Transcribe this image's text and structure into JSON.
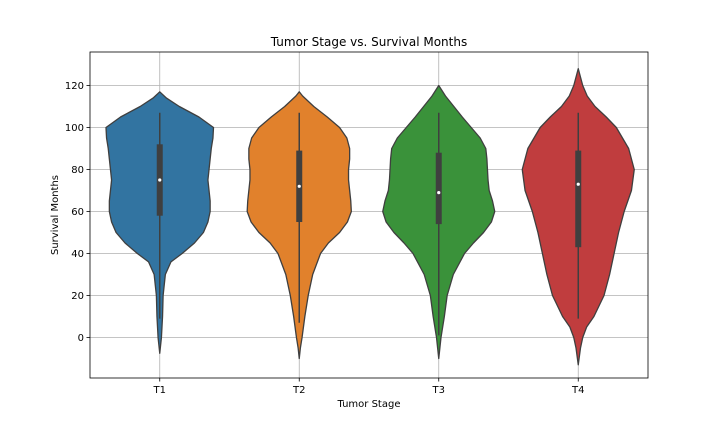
{
  "chart_data": {
    "type": "violin",
    "title": "Tumor Stage vs. Survival Months",
    "xlabel": "Tumor Stage",
    "ylabel": "Survival Months",
    "ylim": [
      -20,
      135
    ],
    "yticks": [
      0,
      20,
      40,
      60,
      80,
      100,
      120
    ],
    "grid": true,
    "categories": [
      "T1",
      "T2",
      "T3",
      "T4"
    ],
    "colors": [
      "#3274a1",
      "#e1812c",
      "#3a923a",
      "#c03d3e"
    ],
    "violins": [
      {
        "category": "T1",
        "median": 75,
        "q1": 58,
        "q3": 92,
        "whisker_low": 9,
        "whisker_high": 107,
        "profile": [
          [
            -7.5,
            0
          ],
          [
            0,
            0.03
          ],
          [
            10,
            0.05
          ],
          [
            20,
            0.06
          ],
          [
            30,
            0.1
          ],
          [
            36,
            0.2
          ],
          [
            40,
            0.4
          ],
          [
            45,
            0.62
          ],
          [
            50,
            0.78
          ],
          [
            55,
            0.86
          ],
          [
            60,
            0.9
          ],
          [
            65,
            0.9
          ],
          [
            70,
            0.88
          ],
          [
            75,
            0.86
          ],
          [
            80,
            0.88
          ],
          [
            85,
            0.9
          ],
          [
            90,
            0.92
          ],
          [
            95,
            0.95
          ],
          [
            100,
            0.96
          ],
          [
            105,
            0.7
          ],
          [
            110,
            0.35
          ],
          [
            114,
            0.12
          ],
          [
            117,
            0
          ]
        ]
      },
      {
        "category": "T2",
        "median": 72,
        "q1": 55,
        "q3": 89,
        "whisker_low": 7,
        "whisker_high": 107,
        "profile": [
          [
            -10,
            0
          ],
          [
            -5,
            0.02
          ],
          [
            0,
            0.05
          ],
          [
            10,
            0.1
          ],
          [
            20,
            0.16
          ],
          [
            30,
            0.24
          ],
          [
            40,
            0.38
          ],
          [
            45,
            0.52
          ],
          [
            50,
            0.72
          ],
          [
            55,
            0.86
          ],
          [
            60,
            0.93
          ],
          [
            65,
            0.92
          ],
          [
            70,
            0.9
          ],
          [
            75,
            0.88
          ],
          [
            80,
            0.88
          ],
          [
            85,
            0.9
          ],
          [
            90,
            0.9
          ],
          [
            95,
            0.85
          ],
          [
            100,
            0.72
          ],
          [
            105,
            0.5
          ],
          [
            110,
            0.26
          ],
          [
            115,
            0.06
          ],
          [
            117,
            0
          ]
        ]
      },
      {
        "category": "T3",
        "median": 69,
        "q1": 54,
        "q3": 88,
        "whisker_low": 1,
        "whisker_high": 107,
        "profile": [
          [
            -10,
            0
          ],
          [
            -5,
            0.02
          ],
          [
            0,
            0.04
          ],
          [
            10,
            0.1
          ],
          [
            20,
            0.15
          ],
          [
            30,
            0.26
          ],
          [
            40,
            0.46
          ],
          [
            45,
            0.62
          ],
          [
            50,
            0.8
          ],
          [
            55,
            0.94
          ],
          [
            60,
            1.0
          ],
          [
            65,
            0.96
          ],
          [
            70,
            0.9
          ],
          [
            75,
            0.88
          ],
          [
            80,
            0.87
          ],
          [
            85,
            0.86
          ],
          [
            90,
            0.84
          ],
          [
            95,
            0.74
          ],
          [
            100,
            0.58
          ],
          [
            105,
            0.42
          ],
          [
            110,
            0.27
          ],
          [
            115,
            0.12
          ],
          [
            120,
            0
          ]
        ]
      },
      {
        "category": "T4",
        "median": 73,
        "q1": 43,
        "q3": 89,
        "whisker_low": 9,
        "whisker_high": 107,
        "profile": [
          [
            -13,
            0
          ],
          [
            -5,
            0.04
          ],
          [
            0,
            0.08
          ],
          [
            5,
            0.15
          ],
          [
            10,
            0.28
          ],
          [
            20,
            0.46
          ],
          [
            30,
            0.56
          ],
          [
            40,
            0.64
          ],
          [
            50,
            0.72
          ],
          [
            60,
            0.82
          ],
          [
            70,
            0.95
          ],
          [
            80,
            1.0
          ],
          [
            90,
            0.9
          ],
          [
            100,
            0.68
          ],
          [
            105,
            0.5
          ],
          [
            110,
            0.3
          ],
          [
            115,
            0.16
          ],
          [
            120,
            0.08
          ],
          [
            125,
            0.03
          ],
          [
            128,
            0
          ]
        ]
      }
    ]
  }
}
